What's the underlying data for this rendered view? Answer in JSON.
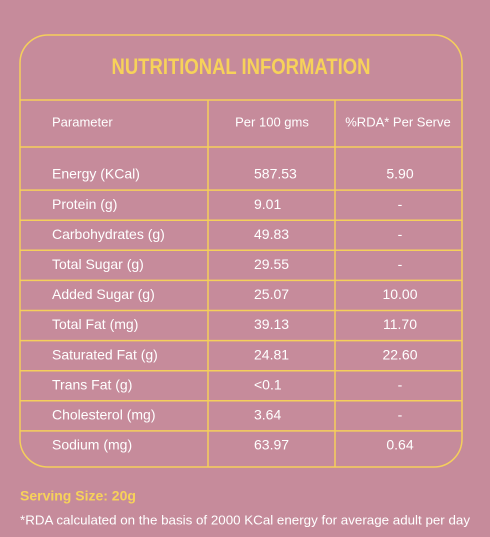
{
  "header": {
    "title": "NUTRITIONAL INFORMATION"
  },
  "table": {
    "columns": [
      "Parameter",
      "Per 100 gms",
      "%RDA* Per Serve"
    ],
    "rows": [
      [
        "Energy (KCal)",
        "587.53",
        "5.90"
      ],
      [
        "Protein (g)",
        "9.01",
        "-"
      ],
      [
        "Carbohydrates (g)",
        "49.83",
        "-"
      ],
      [
        "Total Sugar (g)",
        "29.55",
        "-"
      ],
      [
        "Added Sugar (g)",
        "25.07",
        "10.00"
      ],
      [
        "Total Fat (mg)",
        "39.13",
        "11.70"
      ],
      [
        "Saturated Fat (g)",
        "24.81",
        "22.60"
      ],
      [
        "Trans Fat (g)",
        "<0.1",
        "-"
      ],
      [
        "Cholesterol (mg)",
        "3.64",
        "-"
      ],
      [
        "Sodium (mg)",
        "63.97",
        "0.64"
      ]
    ]
  },
  "footer": {
    "serving": "Serving Size: 20g",
    "note": "*RDA calculated on the basis of 2000 KCal energy for average adult per day"
  }
}
